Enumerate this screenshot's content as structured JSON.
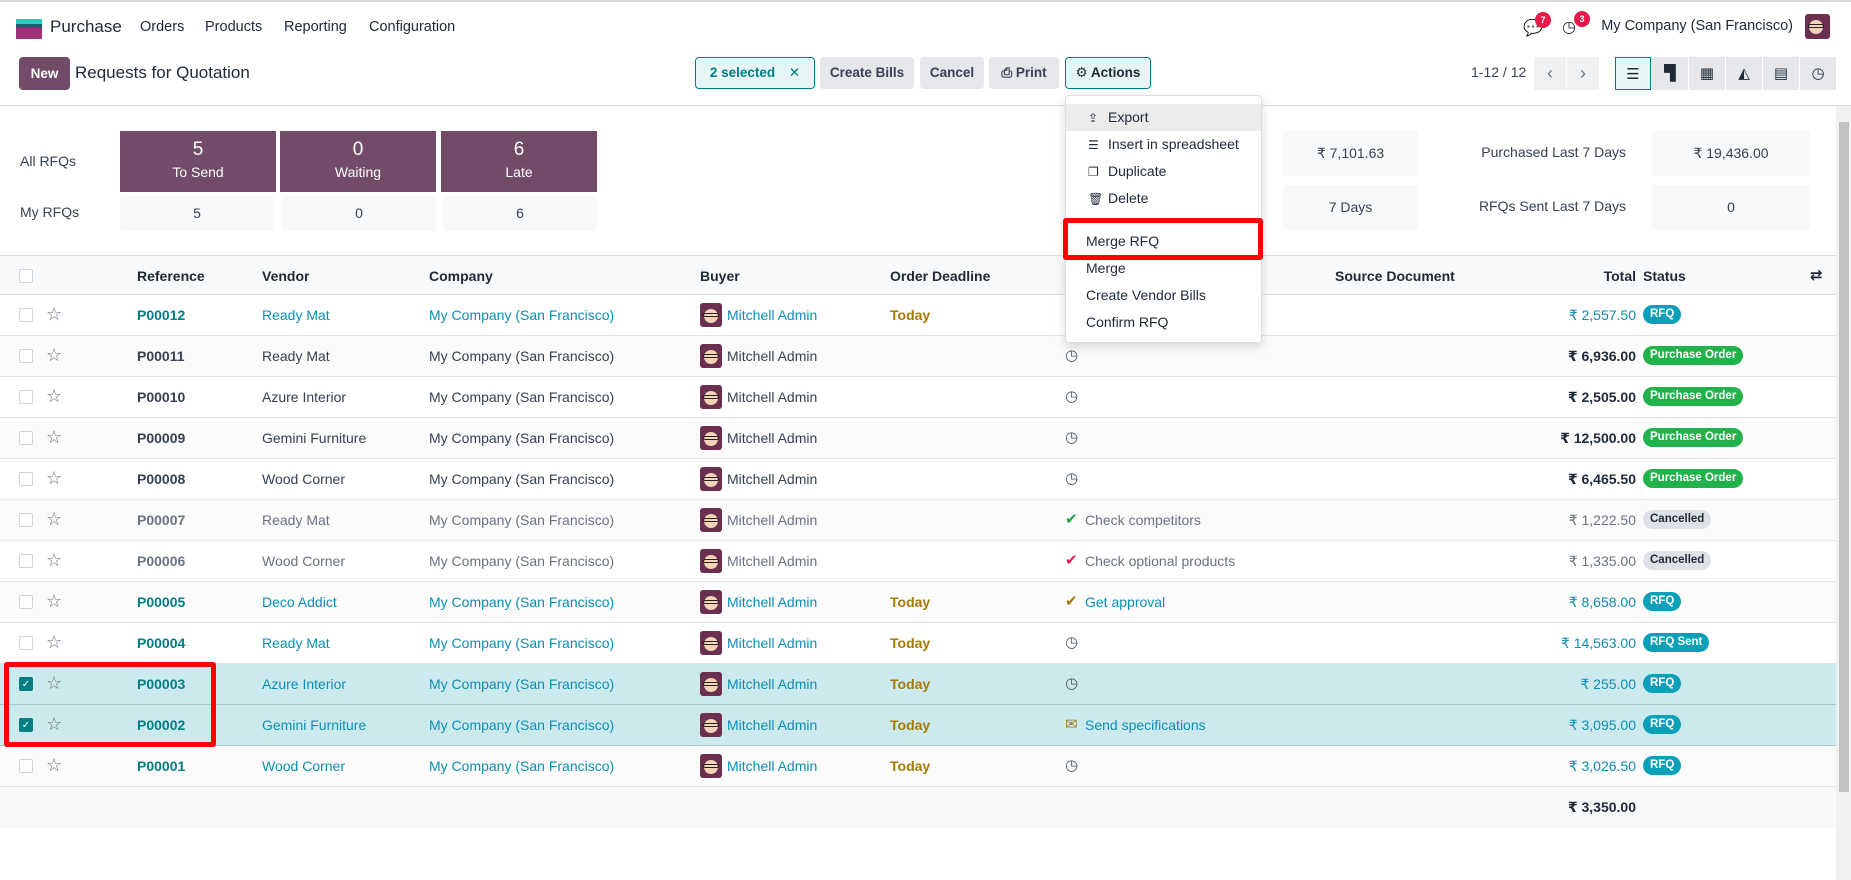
{
  "navbar": {
    "app": "Purchase",
    "menus": [
      "Orders",
      "Products",
      "Reporting",
      "Configuration"
    ],
    "messages_count": "7",
    "activities_count": "3",
    "company": "My Company (San Francisco)"
  },
  "control": {
    "new_label": "New",
    "title": "Requests for Quotation",
    "selected_label": "2 selected",
    "create_bills": "Create Bills",
    "cancel": "Cancel",
    "print": "Print",
    "actions": "Actions",
    "pager": "1-12 / 12"
  },
  "views": [
    "list-icon",
    "kanban-icon",
    "pivot-icon",
    "graph-icon",
    "calendar-icon",
    "activity-icon"
  ],
  "dashboard": {
    "all_rfqs": "All RFQs",
    "my_rfqs": "My RFQs",
    "tiles": [
      {
        "value": "5",
        "label": "To Send",
        "mine": "5"
      },
      {
        "value": "0",
        "label": "Waiting",
        "mine": "0"
      },
      {
        "value": "6",
        "label": "Late",
        "mine": "6"
      }
    ],
    "stats": {
      "value1": "₹ 7,101.63",
      "purchased_label": "Purchased Last 7 Days",
      "purchased_value": "₹ 19,436.00",
      "value2": "7 Days",
      "sent_label": "RFQs Sent Last 7 Days",
      "sent_value": "0"
    }
  },
  "actions_menu": {
    "items": [
      {
        "label": "Export",
        "icon": "upload-icon"
      },
      {
        "label": "Insert in spreadsheet",
        "icon": "list-icon"
      },
      {
        "label": "Duplicate",
        "icon": "copy-icon"
      },
      {
        "label": "Delete",
        "icon": "trash-icon"
      }
    ],
    "extra": [
      "Merge RFQ",
      "Merge",
      "Create Vendor Bills",
      "Confirm RFQ"
    ],
    "highlighted": "Merge RFQ"
  },
  "table": {
    "headers": {
      "reference": "Reference",
      "vendor": "Vendor",
      "company": "Company",
      "buyer": "Buyer",
      "deadline": "Order Deadline",
      "source": "Source Document",
      "total": "Total",
      "status": "Status"
    },
    "rows": [
      {
        "ref": "P00012",
        "vendor": "Ready Mat",
        "company": "My Company (San Francisco)",
        "buyer": "Mitchell Admin",
        "deadline": "Today",
        "activity": "",
        "activity_icon": "",
        "total": "₹ 2,557.50",
        "status": "RFQ",
        "style": "blue",
        "selected": false
      },
      {
        "ref": "P00011",
        "vendor": "Ready Mat",
        "company": "My Company (San Francisco)",
        "buyer": "Mitchell Admin",
        "deadline": "",
        "activity": "",
        "activity_icon": "clock-icon",
        "total": "₹ 6,936.00",
        "status": "Purchase Order",
        "style": "bold",
        "selected": false
      },
      {
        "ref": "P00010",
        "vendor": "Azure Interior",
        "company": "My Company (San Francisco)",
        "buyer": "Mitchell Admin",
        "deadline": "",
        "activity": "",
        "activity_icon": "clock-icon",
        "total": "₹ 2,505.00",
        "status": "Purchase Order",
        "style": "bold",
        "selected": false
      },
      {
        "ref": "P00009",
        "vendor": "Gemini Furniture",
        "company": "My Company (San Francisco)",
        "buyer": "Mitchell Admin",
        "deadline": "",
        "activity": "",
        "activity_icon": "clock-icon",
        "total": "₹ 12,500.00",
        "status": "Purchase Order",
        "style": "bold",
        "selected": false
      },
      {
        "ref": "P00008",
        "vendor": "Wood Corner",
        "company": "My Company (San Francisco)",
        "buyer": "Mitchell Admin",
        "deadline": "",
        "activity": "",
        "activity_icon": "clock-icon",
        "total": "₹ 6,465.50",
        "status": "Purchase Order",
        "style": "bold",
        "selected": false
      },
      {
        "ref": "P00007",
        "vendor": "Ready Mat",
        "company": "My Company (San Francisco)",
        "buyer": "Mitchell Admin",
        "deadline": "",
        "activity": "Check competitors",
        "activity_icon": "check-green-icon",
        "total": "₹ 1,222.50",
        "status": "Cancelled",
        "style": "muted",
        "selected": false
      },
      {
        "ref": "P00006",
        "vendor": "Wood Corner",
        "company": "My Company (San Francisco)",
        "buyer": "Mitchell Admin",
        "deadline": "",
        "activity": "Check optional products",
        "activity_icon": "check-red-icon",
        "total": "₹ 1,335.00",
        "status": "Cancelled",
        "style": "muted",
        "selected": false
      },
      {
        "ref": "P00005",
        "vendor": "Deco Addict",
        "company": "My Company (San Francisco)",
        "buyer": "Mitchell Admin",
        "deadline": "Today",
        "activity": "Get approval",
        "activity_icon": "check-gold-icon",
        "total": "₹ 8,658.00",
        "status": "RFQ",
        "style": "blue",
        "selected": false
      },
      {
        "ref": "P00004",
        "vendor": "Ready Mat",
        "company": "My Company (San Francisco)",
        "buyer": "Mitchell Admin",
        "deadline": "Today",
        "activity": "",
        "activity_icon": "clock-icon",
        "total": "₹ 14,563.00",
        "status": "RFQ Sent",
        "style": "blue",
        "selected": false
      },
      {
        "ref": "P00003",
        "vendor": "Azure Interior",
        "company": "My Company (San Francisco)",
        "buyer": "Mitchell Admin",
        "deadline": "Today",
        "activity": "",
        "activity_icon": "clock-icon",
        "total": "₹ 255.00",
        "status": "RFQ",
        "style": "blue",
        "selected": true
      },
      {
        "ref": "P00002",
        "vendor": "Gemini Furniture",
        "company": "My Company (San Francisco)",
        "buyer": "Mitchell Admin",
        "deadline": "Today",
        "activity": "Send specifications",
        "activity_icon": "envelope-icon",
        "total": "₹ 3,095.00",
        "status": "RFQ",
        "style": "blue",
        "selected": true
      },
      {
        "ref": "P00001",
        "vendor": "Wood Corner",
        "company": "My Company (San Francisco)",
        "buyer": "Mitchell Admin",
        "deadline": "Today",
        "activity": "",
        "activity_icon": "clock-icon",
        "total": "₹ 3,026.50",
        "status": "RFQ",
        "style": "blue",
        "selected": false
      }
    ],
    "grand_total": "₹ 3,350.00"
  },
  "colors": {
    "brand": "#714b67",
    "accent": "#017e84",
    "rfq": "#0aa1b8",
    "purchase_order": "#21b24b",
    "cancelled": "#dee2e6",
    "highlight": "#ff0000"
  }
}
